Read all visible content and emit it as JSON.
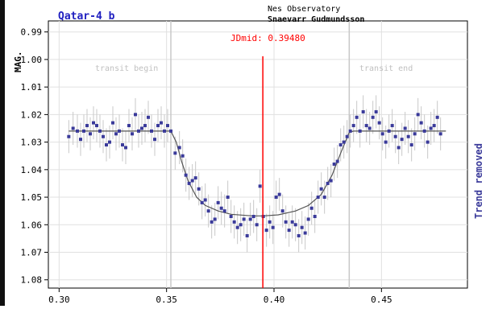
{
  "chart_data": {
    "type": "scatter",
    "title": "Qatar-4 b",
    "observatory": "Nes Observatory",
    "observer": "Snaevarr Gudmundsson",
    "ylabel": "MAG.",
    "right_label": "Trend removed",
    "jdmid_label": "JDmid: 0.39480",
    "jdmid": 0.3948,
    "transit_begin": 0.352,
    "transit_end": 0.435,
    "transit_begin_label": "transit begin",
    "transit_end_label": "transit end",
    "xlim": [
      0.295,
      0.49
    ],
    "ylim": [
      0.986,
      1.083
    ],
    "y_inverted": true,
    "x_ticks": [
      0.3,
      0.35,
      0.4,
      0.45
    ],
    "x_tick_labels": [
      "0.30",
      "0.35",
      "0.40",
      "0.45"
    ],
    "y_ticks": [
      0.99,
      1.0,
      1.01,
      1.02,
      1.03,
      1.04,
      1.05,
      1.06,
      1.07,
      1.08
    ],
    "y_tick_labels": [
      "0.99",
      "1.00",
      "1.01",
      "1.02",
      "1.03",
      "1.04",
      "1.05",
      "1.06",
      "1.07",
      "1.08"
    ],
    "grid": true,
    "colors": {
      "points": "#3a3a9a",
      "error_bars": "#c8c8c8",
      "model": "#555555",
      "jdmid_line": "#ff0000",
      "transit_lines": "#c8c8c8",
      "title": "#2020c0",
      "grid": "#e0e0e0",
      "axis": "#000000"
    },
    "points": [
      [
        0.3045,
        1.028
      ],
      [
        0.3065,
        1.025
      ],
      [
        0.3085,
        1.026
      ],
      [
        0.31,
        1.029
      ],
      [
        0.3115,
        1.026
      ],
      [
        0.313,
        1.024
      ],
      [
        0.3145,
        1.027
      ],
      [
        0.316,
        1.023
      ],
      [
        0.3175,
        1.024
      ],
      [
        0.319,
        1.026
      ],
      [
        0.3205,
        1.028
      ],
      [
        0.322,
        1.031
      ],
      [
        0.3235,
        1.03
      ],
      [
        0.325,
        1.023
      ],
      [
        0.3265,
        1.027
      ],
      [
        0.328,
        1.026
      ],
      [
        0.3295,
        1.031
      ],
      [
        0.331,
        1.032
      ],
      [
        0.3325,
        1.024
      ],
      [
        0.334,
        1.027
      ],
      [
        0.3355,
        1.02
      ],
      [
        0.337,
        1.026
      ],
      [
        0.3385,
        1.025
      ],
      [
        0.34,
        1.024
      ],
      [
        0.3415,
        1.021
      ],
      [
        0.343,
        1.026
      ],
      [
        0.3445,
        1.029
      ],
      [
        0.346,
        1.024
      ],
      [
        0.3475,
        1.023
      ],
      [
        0.349,
        1.026
      ],
      [
        0.3505,
        1.024
      ],
      [
        0.352,
        1.026
      ],
      [
        0.354,
        1.034
      ],
      [
        0.356,
        1.032
      ],
      [
        0.3575,
        1.035
      ],
      [
        0.359,
        1.042
      ],
      [
        0.3605,
        1.045
      ],
      [
        0.362,
        1.044
      ],
      [
        0.3635,
        1.043
      ],
      [
        0.365,
        1.047
      ],
      [
        0.3665,
        1.052
      ],
      [
        0.368,
        1.051
      ],
      [
        0.3695,
        1.055
      ],
      [
        0.371,
        1.059
      ],
      [
        0.3725,
        1.058
      ],
      [
        0.374,
        1.052
      ],
      [
        0.3755,
        1.054
      ],
      [
        0.377,
        1.055
      ],
      [
        0.3785,
        1.05
      ],
      [
        0.38,
        1.057
      ],
      [
        0.3815,
        1.059
      ],
      [
        0.383,
        1.061
      ],
      [
        0.3845,
        1.06
      ],
      [
        0.386,
        1.058
      ],
      [
        0.3875,
        1.064
      ],
      [
        0.389,
        1.058
      ],
      [
        0.3905,
        1.057
      ],
      [
        0.392,
        1.06
      ],
      [
        0.3935,
        1.046
      ],
      [
        0.395,
        1.057
      ],
      [
        0.3965,
        1.062
      ],
      [
        0.398,
        1.059
      ],
      [
        0.3995,
        1.061
      ],
      [
        0.401,
        1.05
      ],
      [
        0.4025,
        1.049
      ],
      [
        0.404,
        1.055
      ],
      [
        0.4055,
        1.059
      ],
      [
        0.407,
        1.062
      ],
      [
        0.4085,
        1.059
      ],
      [
        0.41,
        1.06
      ],
      [
        0.4115,
        1.064
      ],
      [
        0.413,
        1.061
      ],
      [
        0.4145,
        1.063
      ],
      [
        0.416,
        1.058
      ],
      [
        0.4175,
        1.054
      ],
      [
        0.419,
        1.057
      ],
      [
        0.4205,
        1.05
      ],
      [
        0.422,
        1.047
      ],
      [
        0.4235,
        1.05
      ],
      [
        0.425,
        1.045
      ],
      [
        0.4265,
        1.044
      ],
      [
        0.428,
        1.038
      ],
      [
        0.4295,
        1.037
      ],
      [
        0.431,
        1.031
      ],
      [
        0.4325,
        1.03
      ],
      [
        0.434,
        1.028
      ],
      [
        0.4355,
        1.026
      ],
      [
        0.437,
        1.024
      ],
      [
        0.4385,
        1.021
      ],
      [
        0.44,
        1.026
      ],
      [
        0.4415,
        1.019
      ],
      [
        0.443,
        1.024
      ],
      [
        0.4445,
        1.025
      ],
      [
        0.446,
        1.021
      ],
      [
        0.4475,
        1.019
      ],
      [
        0.449,
        1.023
      ],
      [
        0.4505,
        1.027
      ],
      [
        0.452,
        1.03
      ],
      [
        0.4535,
        1.026
      ],
      [
        0.455,
        1.024
      ],
      [
        0.4565,
        1.028
      ],
      [
        0.458,
        1.032
      ],
      [
        0.4595,
        1.029
      ],
      [
        0.461,
        1.025
      ],
      [
        0.4625,
        1.028
      ],
      [
        0.464,
        1.031
      ],
      [
        0.4655,
        1.027
      ],
      [
        0.467,
        1.02
      ],
      [
        0.4685,
        1.023
      ],
      [
        0.47,
        1.026
      ],
      [
        0.4715,
        1.03
      ],
      [
        0.473,
        1.025
      ],
      [
        0.4745,
        1.024
      ],
      [
        0.476,
        1.021
      ],
      [
        0.4775,
        1.027
      ]
    ],
    "error_bar": 0.006,
    "model": [
      [
        0.3045,
        1.026
      ],
      [
        0.352,
        1.026
      ],
      [
        0.3545,
        1.03
      ],
      [
        0.357,
        1.037
      ],
      [
        0.36,
        1.044
      ],
      [
        0.364,
        1.05
      ],
      [
        0.368,
        1.053
      ],
      [
        0.374,
        1.055
      ],
      [
        0.38,
        1.0562
      ],
      [
        0.39,
        1.0568
      ],
      [
        0.395,
        1.0568
      ],
      [
        0.402,
        1.0564
      ],
      [
        0.41,
        1.055
      ],
      [
        0.416,
        1.053
      ],
      [
        0.422,
        1.049
      ],
      [
        0.427,
        1.042
      ],
      [
        0.431,
        1.034
      ],
      [
        0.435,
        1.0265
      ],
      [
        0.437,
        1.026
      ],
      [
        0.48,
        1.026
      ]
    ]
  }
}
